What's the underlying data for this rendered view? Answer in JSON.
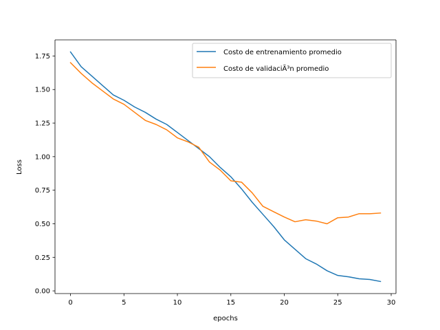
{
  "chart_data": {
    "type": "line",
    "title": "",
    "xlabel": "epochs",
    "ylabel": "Loss",
    "xlim": [
      -1.45,
      30.45
    ],
    "ylim": [
      -0.02,
      1.87
    ],
    "xticks": [
      0,
      5,
      10,
      15,
      20,
      25,
      30
    ],
    "yticks": [
      0.0,
      0.25,
      0.5,
      0.75,
      1.0,
      1.25,
      1.5,
      1.75
    ],
    "ytick_labels": [
      "0.00",
      "0.25",
      "0.50",
      "0.75",
      "1.00",
      "1.25",
      "1.50",
      "1.75"
    ],
    "xtick_labels": [
      "0",
      "5",
      "10",
      "15",
      "20",
      "25",
      "30"
    ],
    "grid": false,
    "legend_position": "top-right",
    "x": [
      0,
      1,
      2,
      3,
      4,
      5,
      6,
      7,
      8,
      9,
      10,
      11,
      12,
      13,
      14,
      15,
      16,
      17,
      18,
      19,
      20,
      21,
      22,
      23,
      24,
      25,
      26,
      27,
      28,
      29
    ],
    "series": [
      {
        "name": "Costo de entrenamiento promedio",
        "color": "#1f77b4",
        "values": [
          1.78,
          1.67,
          1.6,
          1.53,
          1.46,
          1.42,
          1.37,
          1.33,
          1.28,
          1.24,
          1.18,
          1.12,
          1.06,
          1.0,
          0.92,
          0.85,
          0.76,
          0.66,
          0.57,
          0.48,
          0.38,
          0.31,
          0.24,
          0.2,
          0.15,
          0.115,
          0.105,
          0.09,
          0.085,
          0.07
        ]
      },
      {
        "name": "Costo de validaciÃ³n promedio",
        "color": "#ff7f0e",
        "values": [
          1.7,
          1.62,
          1.55,
          1.49,
          1.43,
          1.39,
          1.33,
          1.27,
          1.24,
          1.2,
          1.14,
          1.11,
          1.07,
          0.96,
          0.9,
          0.82,
          0.81,
          0.73,
          0.63,
          0.59,
          0.55,
          0.515,
          0.53,
          0.52,
          0.5,
          0.545,
          0.55,
          0.575,
          0.575,
          0.58
        ]
      }
    ]
  }
}
